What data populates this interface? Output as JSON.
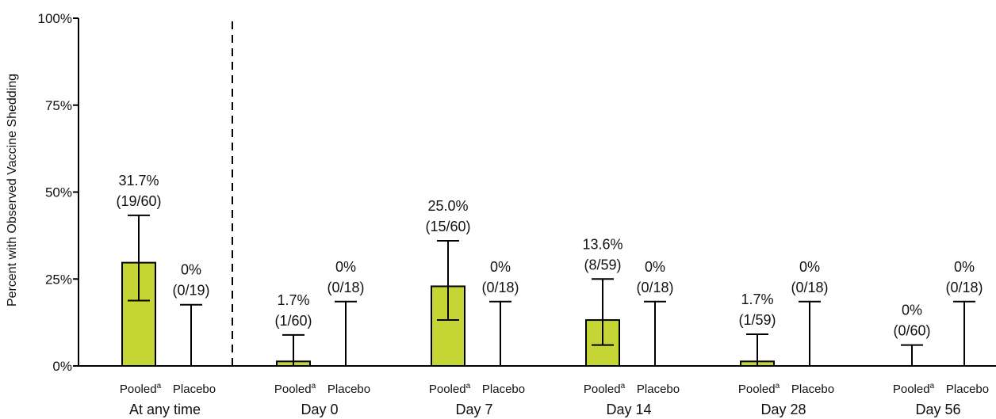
{
  "chart_data": {
    "type": "bar",
    "title": "",
    "xlabel": "",
    "ylabel": "Percent with Observed Vaccine Shedding",
    "ylim": [
      0,
      100
    ],
    "yticks": [
      "0%",
      "25%",
      "50%",
      "75%",
      "100%"
    ],
    "ytick_values": [
      0,
      25,
      50,
      75,
      100
    ],
    "bar_color": "#c5d634",
    "groups": [
      {
        "label": "At any time",
        "bars": [
          {
            "label": "Pooled",
            "superscript": "a",
            "value": 29.7,
            "err_low": 18.8,
            "err_high": 43.3,
            "pct_label": "31.7%",
            "count_label": "(19/60)"
          },
          {
            "label": "Placebo",
            "superscript": "",
            "value": 0,
            "err_low": 0,
            "err_high": 17.6,
            "pct_label": "0%",
            "count_label": "(0/19)"
          }
        ]
      },
      {
        "label": "Day 0",
        "bars": [
          {
            "label": "Pooled",
            "superscript": "a",
            "value": 1.3,
            "err_low": 0,
            "err_high": 8.9,
            "pct_label": "1.7%",
            "count_label": "(1/60)"
          },
          {
            "label": "Placebo",
            "superscript": "",
            "value": 0,
            "err_low": 0,
            "err_high": 18.5,
            "pct_label": "0%",
            "count_label": "(0/18)"
          }
        ]
      },
      {
        "label": "Day 7",
        "bars": [
          {
            "label": "Pooled",
            "superscript": "a",
            "value": 22.9,
            "err_low": 13.2,
            "err_high": 36.0,
            "pct_label": "25.0%",
            "count_label": "(15/60)"
          },
          {
            "label": "Placebo",
            "superscript": "",
            "value": 0,
            "err_low": 0,
            "err_high": 18.5,
            "pct_label": "0%",
            "count_label": "(0/18)"
          }
        ]
      },
      {
        "label": "Day 14",
        "bars": [
          {
            "label": "Pooled",
            "superscript": "a",
            "value": 13.2,
            "err_low": 6.0,
            "err_high": 25.0,
            "pct_label": "13.6%",
            "count_label": "(8/59)"
          },
          {
            "label": "Placebo",
            "superscript": "",
            "value": 0,
            "err_low": 0,
            "err_high": 18.5,
            "pct_label": "0%",
            "count_label": "(0/18)"
          }
        ]
      },
      {
        "label": "Day 28",
        "bars": [
          {
            "label": "Pooled",
            "superscript": "a",
            "value": 1.3,
            "err_low": 0,
            "err_high": 9.1,
            "pct_label": "1.7%",
            "count_label": "(1/59)"
          },
          {
            "label": "Placebo",
            "superscript": "",
            "value": 0,
            "err_low": 0,
            "err_high": 18.5,
            "pct_label": "0%",
            "count_label": "(0/18)"
          }
        ]
      },
      {
        "label": "Day 56",
        "bars": [
          {
            "label": "Pooled",
            "superscript": "a",
            "value": 0,
            "err_low": 0,
            "err_high": 6.0,
            "pct_label": "0%",
            "count_label": "(0/60)"
          },
          {
            "label": "Placebo",
            "superscript": "",
            "value": 0,
            "err_low": 0,
            "err_high": 18.5,
            "pct_label": "0%",
            "count_label": "(0/18)"
          }
        ]
      }
    ],
    "separator": "dashed line after first group"
  }
}
